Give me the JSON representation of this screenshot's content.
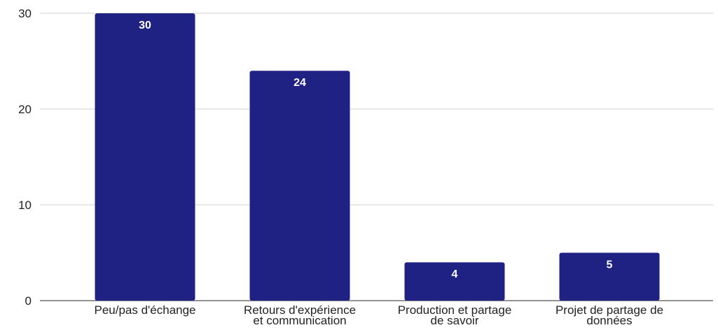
{
  "chart_data": {
    "type": "bar",
    "categories": [
      [
        "Peu/pas d'échange"
      ],
      [
        "Retours d'expérience",
        "et communication"
      ],
      [
        "Production et partage",
        "de savoir"
      ],
      [
        "Projet de partage de",
        "données"
      ]
    ],
    "values": [
      30,
      24,
      4,
      5
    ],
    "data_labels": [
      "30",
      "24",
      "4",
      "5"
    ],
    "ylim": [
      0,
      30
    ],
    "yticks": [
      0,
      10,
      20,
      30
    ],
    "title": "",
    "xlabel": "",
    "ylabel": "",
    "grid": true,
    "legend": "none",
    "colors": {
      "bar": "#1f2282",
      "grid": "#d0d0d0",
      "label": "#ffffff"
    }
  }
}
